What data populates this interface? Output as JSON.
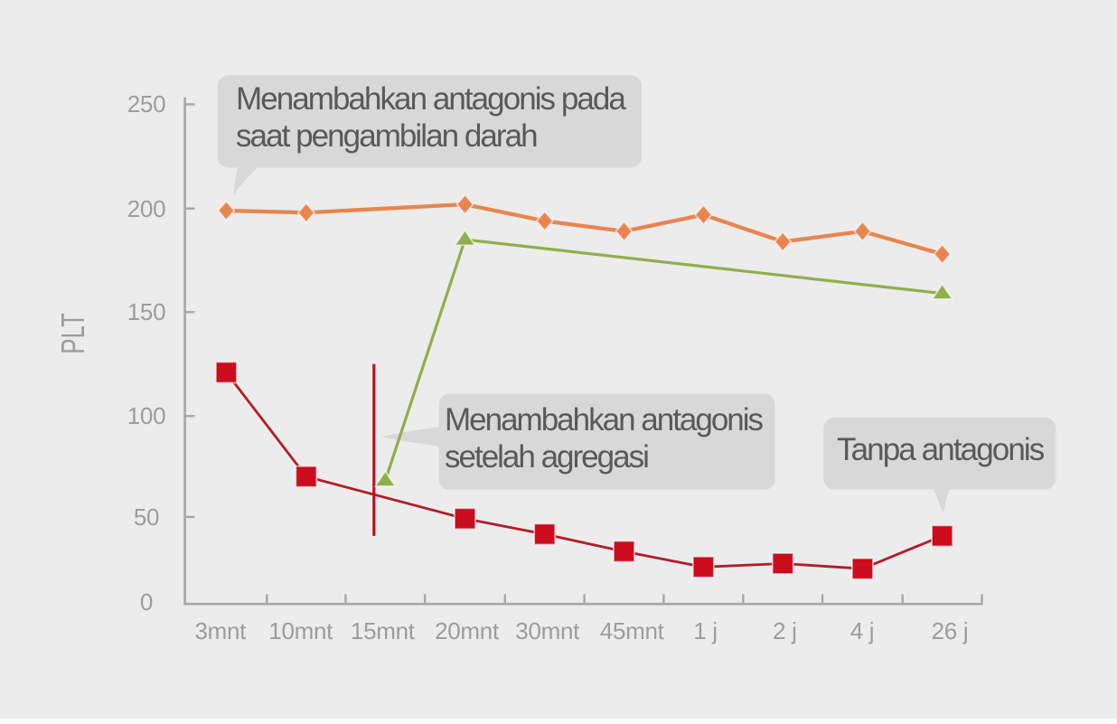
{
  "figure": {
    "background_color": "#ECECEC",
    "footer_strip_color": "#FBFBFB",
    "callout_bg_color": "#D8D8D8",
    "callout_text_color": "#58595B",
    "axis_color": "#A6A6A6",
    "tick_label_color": "#9C9C9C"
  },
  "chart_data": {
    "type": "line",
    "title": "",
    "xlabel": "",
    "ylabel": "PLT",
    "categories": [
      "3mnt",
      "10mnt",
      "15mnt",
      "20mnt",
      "30mnt",
      "45mnt",
      "1 j",
      "2 j",
      "4 j",
      "26 j"
    ],
    "y_ticks": [
      0,
      50,
      100,
      150,
      200,
      250
    ],
    "ylim": [
      0,
      250
    ],
    "grid": false,
    "legend_position": "none",
    "series": [
      {
        "name": "Menambahkan antagonis pada saat pengambilan darah",
        "marker": "diamond",
        "color": "#E8854F",
        "values": [
          199,
          198,
          null,
          202,
          194,
          189,
          197,
          184,
          189,
          178
        ]
      },
      {
        "name": "Menambahkan antagonis setelah agregasi",
        "marker": "triangle",
        "color": "#8FAE4C",
        "values": [
          null,
          null,
          68,
          185,
          null,
          null,
          null,
          null,
          null,
          159
        ]
      },
      {
        "name": "Tanpa antagonis",
        "marker": "square",
        "color": "#CB0C1D",
        "line_color": "#B01E28",
        "values": [
          121,
          70,
          null,
          49,
          40,
          30,
          21,
          23,
          20,
          39
        ]
      }
    ],
    "reference_line": {
      "color": "#C00E20",
      "at_category": "15mnt",
      "from_value": 39,
      "to_value": 125
    },
    "annotations": [
      {
        "text": "Menambahkan antagonis pada\nsaat pengambilan darah",
        "points_to": "orange series first point"
      },
      {
        "text": "Menambahkan antagonis\nsetelah agregasi",
        "points_to": "green series first point"
      },
      {
        "text": "Tanpa antagonis",
        "points_to": "red series last point"
      }
    ]
  }
}
